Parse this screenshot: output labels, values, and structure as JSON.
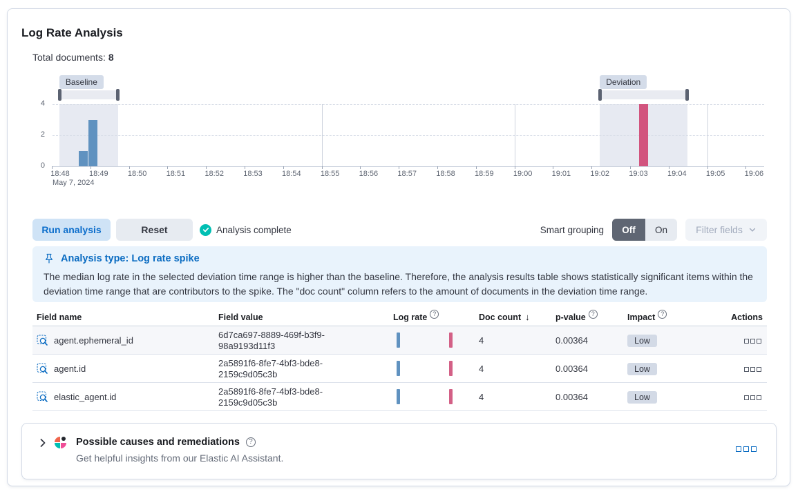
{
  "panel": {
    "title": "Log Rate Analysis"
  },
  "summary": {
    "label": "Total documents:",
    "value": "8"
  },
  "chart_data": {
    "type": "bar",
    "x_ticks": [
      "18:48",
      "18:49",
      "18:50",
      "18:51",
      "18:52",
      "18:53",
      "18:54",
      "18:55",
      "18:56",
      "18:57",
      "18:58",
      "18:59",
      "19:00",
      "19:01",
      "19:02",
      "19:03",
      "19:04",
      "19:05",
      "19:06"
    ],
    "x_axis_subtitle": "May 7, 2024",
    "y_ticks": [
      0,
      2,
      4
    ],
    "ylim": [
      0,
      4
    ],
    "grid": true,
    "legend": false,
    "bar_width_minutes": 0.25,
    "series": [
      {
        "name": "baseline",
        "color": "#6092c0",
        "bars": [
          {
            "x_minute": 0.6,
            "value": 1
          },
          {
            "x_minute": 0.85,
            "value": 3
          }
        ]
      },
      {
        "name": "deviation",
        "color": "#d2547e",
        "bars": [
          {
            "x_minute": 15.13,
            "value": 4
          }
        ]
      }
    ],
    "brushes": [
      {
        "label": "Baseline",
        "start_minute": -0.02,
        "end_minute": 1.5
      },
      {
        "label": "Deviation",
        "start_minute": 14.0,
        "end_minute": 16.27
      }
    ],
    "vertical_gridlines_minutes": [
      7,
      12,
      17
    ]
  },
  "controls": {
    "run_label": "Run analysis",
    "reset_label": "Reset",
    "status_label": "Analysis complete",
    "smart_grouping_label": "Smart grouping",
    "toggle_off_label": "Off",
    "toggle_on_label": "On",
    "filter_fields_label": "Filter fields"
  },
  "callout": {
    "title": "Analysis type: Log rate spike",
    "body": "The median log rate in the selected deviation time range is higher than the baseline. Therefore, the analysis results table shows statistically significant items within the deviation time range that are contributors to the spike. The \"doc count\" column refers to the amount of documents in the deviation time range."
  },
  "table": {
    "columns": [
      {
        "label": "Field name"
      },
      {
        "label": "Field value"
      },
      {
        "label": "Log rate",
        "info": true
      },
      {
        "label": "Doc count",
        "sort": "desc"
      },
      {
        "label": "p-value",
        "info": true
      },
      {
        "label": "Impact",
        "info": true
      },
      {
        "label": "Actions",
        "align": "right"
      }
    ],
    "rows": [
      {
        "field_name": "agent.ephemeral_id",
        "field_value": "6d7ca697-8889-469f-b3f9-98a9193d11f3",
        "doc_count": "4",
        "p_value": "0.00364",
        "impact": "Low"
      },
      {
        "field_name": "agent.id",
        "field_value": "2a5891f6-8fe7-4bf3-bde8-2159c9d05c3b",
        "doc_count": "4",
        "p_value": "0.00364",
        "impact": "Low"
      },
      {
        "field_name": "elastic_agent.id",
        "field_value": "2a5891f6-8fe7-4bf3-bde8-2159c9d05c3b",
        "doc_count": "4",
        "p_value": "0.00364",
        "impact": "Low"
      }
    ]
  },
  "accordion": {
    "title": "Possible causes and remediations",
    "subtitle": "Get helpful insights from our Elastic AI Assistant."
  },
  "colors": {
    "primary": "#0b6dcb",
    "success": "#00bfb3",
    "baseline_bar": "#6092c0",
    "deviation_bar": "#d2547e",
    "callout_bg": "#e9f3fc",
    "badge_bg": "#d3dae6"
  }
}
